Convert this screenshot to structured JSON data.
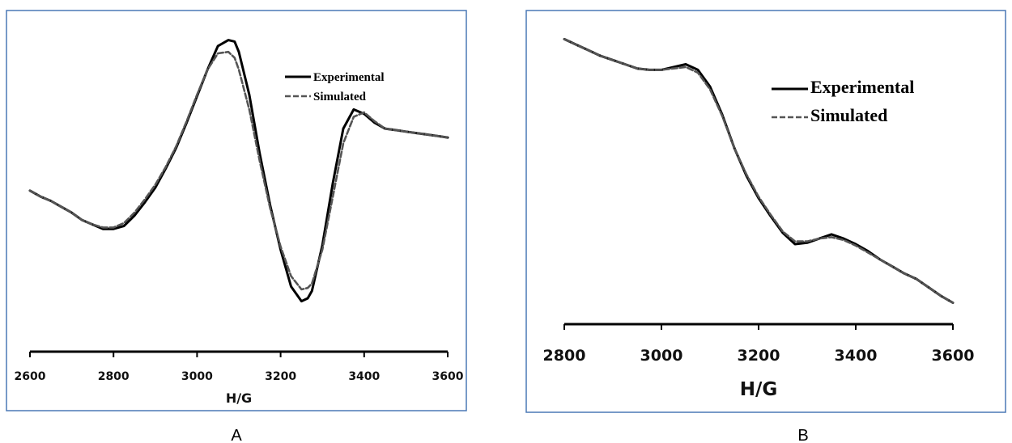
{
  "chart_data": [
    {
      "type": "line",
      "panel_label": "A",
      "title": "",
      "xlabel": "H/G",
      "ylabel": "",
      "xlim": [
        2600,
        3600
      ],
      "ylim": [
        -1.0,
        1.0
      ],
      "y_axis_shown": false,
      "grid": false,
      "legend_position": "top-right",
      "xticks": [
        "2600",
        "2800",
        "3000",
        "3200",
        "3400",
        "3600"
      ],
      "series": [
        {
          "name": "Experimental",
          "style": "solid",
          "color": "#000000",
          "x": [
            2600,
            2625,
            2650,
            2675,
            2700,
            2725,
            2750,
            2775,
            2800,
            2825,
            2850,
            2875,
            2900,
            2925,
            2950,
            2975,
            3000,
            3025,
            3050,
            3075,
            3090,
            3100,
            3125,
            3150,
            3175,
            3200,
            3225,
            3250,
            3265,
            3275,
            3300,
            3325,
            3350,
            3375,
            3400,
            3425,
            3450,
            3475,
            3500,
            3525,
            3550,
            3575,
            3600
          ],
          "y": [
            -0.1,
            -0.14,
            -0.17,
            -0.21,
            -0.25,
            -0.3,
            -0.33,
            -0.36,
            -0.36,
            -0.34,
            -0.27,
            -0.18,
            -0.08,
            0.05,
            0.19,
            0.36,
            0.54,
            0.72,
            0.88,
            0.92,
            0.91,
            0.84,
            0.55,
            0.15,
            -0.2,
            -0.5,
            -0.75,
            -0.85,
            -0.83,
            -0.78,
            -0.47,
            -0.05,
            0.32,
            0.45,
            0.42,
            0.36,
            0.32,
            0.31,
            0.3,
            0.29,
            0.28,
            0.27,
            0.26
          ]
        },
        {
          "name": "Simulated",
          "style": "dashed",
          "color": "#555555",
          "x": [
            2600,
            2625,
            2650,
            2675,
            2700,
            2725,
            2750,
            2775,
            2800,
            2825,
            2850,
            2875,
            2900,
            2925,
            2950,
            2975,
            3000,
            3025,
            3050,
            3075,
            3090,
            3100,
            3125,
            3150,
            3175,
            3200,
            3225,
            3250,
            3265,
            3275,
            3300,
            3325,
            3350,
            3375,
            3400,
            3425,
            3450,
            3475,
            3500,
            3525,
            3550,
            3575,
            3600
          ],
          "y": [
            -0.1,
            -0.14,
            -0.17,
            -0.21,
            -0.25,
            -0.3,
            -0.33,
            -0.35,
            -0.35,
            -0.32,
            -0.25,
            -0.16,
            -0.06,
            0.06,
            0.2,
            0.37,
            0.55,
            0.72,
            0.83,
            0.84,
            0.8,
            0.72,
            0.45,
            0.1,
            -0.22,
            -0.48,
            -0.68,
            -0.77,
            -0.76,
            -0.73,
            -0.5,
            -0.14,
            0.22,
            0.4,
            0.43,
            0.37,
            0.32,
            0.31,
            0.3,
            0.29,
            0.28,
            0.27,
            0.26
          ]
        }
      ]
    },
    {
      "type": "line",
      "panel_label": "B",
      "title": "",
      "xlabel": "H/G",
      "ylabel": "",
      "xlim": [
        2800,
        3600
      ],
      "ylim": [
        -1.0,
        1.0
      ],
      "y_axis_shown": false,
      "grid": false,
      "legend_position": "top-right",
      "xticks": [
        "2800",
        "3000",
        "3200",
        "3400",
        "3600"
      ],
      "series": [
        {
          "name": "Experimental",
          "style": "solid",
          "color": "#000000",
          "x": [
            2800,
            2825,
            2850,
            2875,
            2900,
            2925,
            2950,
            2975,
            3000,
            3025,
            3050,
            3075,
            3100,
            3125,
            3150,
            3175,
            3200,
            3225,
            3250,
            3275,
            3300,
            3325,
            3350,
            3375,
            3400,
            3425,
            3450,
            3475,
            3500,
            3525,
            3550,
            3575,
            3600
          ],
          "y": [
            0.98,
            0.94,
            0.9,
            0.86,
            0.83,
            0.8,
            0.77,
            0.76,
            0.76,
            0.78,
            0.8,
            0.76,
            0.64,
            0.44,
            0.2,
            0.0,
            -0.16,
            -0.29,
            -0.41,
            -0.49,
            -0.48,
            -0.45,
            -0.42,
            -0.45,
            -0.49,
            -0.54,
            -0.6,
            -0.65,
            -0.7,
            -0.74,
            -0.8,
            -0.86,
            -0.91
          ]
        },
        {
          "name": "Simulated",
          "style": "dashed",
          "color": "#555555",
          "x": [
            2800,
            2825,
            2850,
            2875,
            2900,
            2925,
            2950,
            2975,
            3000,
            3025,
            3050,
            3075,
            3100,
            3125,
            3150,
            3175,
            3200,
            3225,
            3250,
            3275,
            3300,
            3325,
            3350,
            3375,
            3400,
            3425,
            3450,
            3475,
            3500,
            3525,
            3550,
            3575,
            3600
          ],
          "y": [
            0.98,
            0.94,
            0.9,
            0.86,
            0.83,
            0.8,
            0.77,
            0.76,
            0.76,
            0.77,
            0.78,
            0.74,
            0.62,
            0.43,
            0.2,
            0.01,
            -0.15,
            -0.28,
            -0.4,
            -0.47,
            -0.47,
            -0.45,
            -0.44,
            -0.46,
            -0.5,
            -0.55,
            -0.6,
            -0.65,
            -0.7,
            -0.74,
            -0.8,
            -0.86,
            -0.91
          ]
        }
      ]
    }
  ],
  "frame_color": "#4a78b5"
}
